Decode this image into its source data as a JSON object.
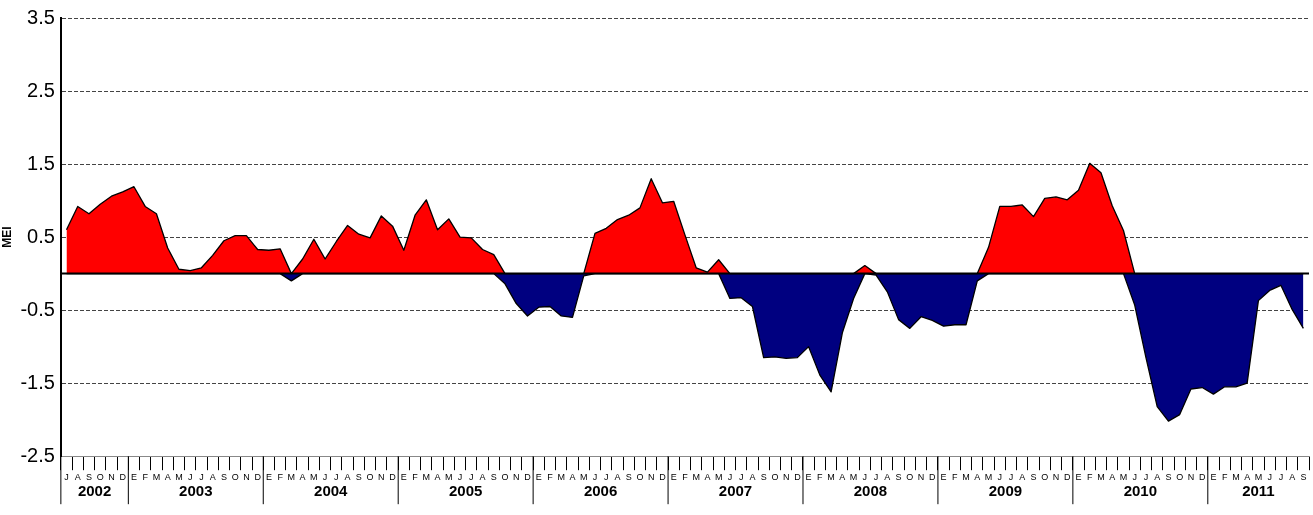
{
  "chart_data": {
    "type": "area",
    "ylabel": "MEI",
    "categories": [
      "J",
      "A",
      "S",
      "O",
      "N",
      "D",
      "E",
      "F",
      "M",
      "A",
      "M",
      "J",
      "J",
      "A",
      "S",
      "O",
      "N",
      "D",
      "E",
      "F",
      "M",
      "A",
      "M",
      "J",
      "J",
      "A",
      "S",
      "O",
      "N",
      "D",
      "E",
      "F",
      "M",
      "A",
      "M",
      "J",
      "J",
      "A",
      "S",
      "O",
      "N",
      "D",
      "E",
      "F",
      "M",
      "A",
      "M",
      "J",
      "J",
      "A",
      "S",
      "O",
      "N",
      "D",
      "E",
      "F",
      "M",
      "A",
      "M",
      "J",
      "J",
      "A",
      "S",
      "O",
      "N",
      "D",
      "E",
      "F",
      "M",
      "A",
      "M",
      "J",
      "J",
      "A",
      "S",
      "O",
      "N",
      "D",
      "E",
      "F",
      "M",
      "A",
      "M",
      "J",
      "J",
      "A",
      "S",
      "O",
      "N",
      "D",
      "E",
      "F",
      "M",
      "A",
      "M",
      "J",
      "J",
      "A",
      "S",
      "O",
      "N",
      "D",
      "E",
      "F",
      "M",
      "A",
      "M",
      "J",
      "J",
      "A",
      "S"
    ],
    "series": [
      {
        "color": "#ff0000",
        "values": [
          0.6,
          0.92,
          0.82,
          0.95,
          1.06,
          1.12,
          1.19,
          0.92,
          0.82,
          0.35,
          0.06,
          0.04,
          0.08,
          0.25,
          0.45,
          0.52,
          0.52,
          0.33,
          0.32,
          0.34,
          0,
          0.2,
          0.47,
          0.2,
          0.44,
          0.66,
          0.54,
          0.49,
          0.79,
          0.65,
          0.32,
          0.8,
          1.01,
          0.6,
          0.75,
          0.5,
          0.49,
          0.33,
          0.26,
          0,
          0,
          0,
          0,
          0,
          0,
          0,
          0,
          0.55,
          0.62,
          0.74,
          0.8,
          0.9,
          1.3,
          0.97,
          0.99,
          0.53,
          0.08,
          0.02,
          0.19,
          0,
          0,
          0,
          0,
          0,
          0,
          0,
          0,
          0,
          0,
          0,
          0,
          0.11,
          0,
          0,
          0,
          0,
          0,
          0,
          0,
          0,
          0,
          0,
          0.36,
          0.92,
          0.92,
          0.94,
          0.78,
          1.03,
          1.05,
          1.01,
          1.14,
          1.51,
          1.38,
          0.93,
          0.59,
          0,
          0,
          0,
          0,
          0,
          0,
          0,
          0,
          0,
          0,
          0,
          0,
          0,
          0,
          0,
          0
        ]
      },
      {
        "color": "#000080",
        "values": [
          0,
          0,
          0,
          0,
          0,
          0,
          0,
          0,
          0,
          0,
          0,
          0,
          0,
          0,
          0,
          0,
          0,
          0,
          0,
          0,
          -0.1,
          0,
          0,
          0,
          0,
          0,
          0,
          0,
          0,
          0,
          0,
          0,
          0,
          0,
          0,
          0,
          0,
          0,
          0,
          -0.14,
          -0.41,
          -0.58,
          -0.46,
          -0.45,
          -0.58,
          -0.6,
          -0.03,
          0,
          0,
          0,
          0,
          0,
          0,
          0,
          0,
          0,
          0,
          0,
          0,
          -0.34,
          -0.33,
          -0.45,
          -1.15,
          -1.14,
          -1.16,
          -1.15,
          -1.0,
          -1.39,
          -1.62,
          -0.81,
          -0.34,
          0,
          -0.02,
          -0.25,
          -0.63,
          -0.75,
          -0.59,
          -0.64,
          -0.72,
          -0.7,
          -0.7,
          -0.1,
          0,
          0,
          0,
          0,
          0,
          0,
          0,
          0,
          0,
          0,
          0,
          0,
          0,
          -0.43,
          -1.15,
          -1.82,
          -2.02,
          -1.93,
          -1.58,
          -1.56,
          -1.65,
          -1.55,
          -1.55,
          -1.5,
          -0.37,
          -0.23,
          -0.16,
          -0.49,
          -0.75
        ]
      }
    ],
    "ylim": [
      -2.5,
      3.5
    ],
    "yticks": [
      -2.5,
      -1.5,
      -0.5,
      0.5,
      1.5,
      2.5,
      3.5
    ],
    "grid": "y",
    "ref_lines": [
      {
        "axis": "y",
        "value": 0,
        "color": "#000000",
        "line_style": "solid"
      }
    ],
    "annotations": [
      "2002",
      "2003",
      "2004",
      "2005",
      "2006",
      "2007",
      "2008",
      "2009",
      "2010",
      "2011"
    ],
    "legend": false
  }
}
